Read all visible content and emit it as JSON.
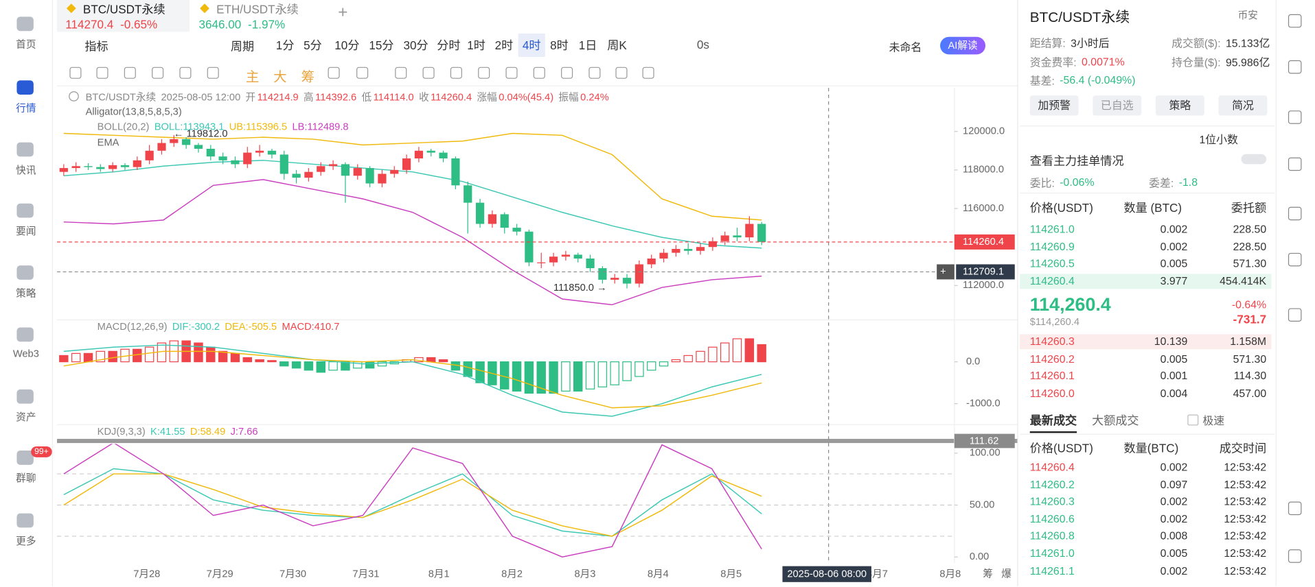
{
  "sidebar": {
    "items": [
      "首页",
      "行情",
      "快讯",
      "要闻",
      "策略",
      "Web3",
      "资产",
      "群聊",
      "更多"
    ],
    "active": 1,
    "badge": "99+"
  },
  "tabs": [
    {
      "symbol": "BTC/USDT永续",
      "price": "114270.4",
      "change": "-0.65%"
    },
    {
      "symbol": "ETH/USDT永续",
      "price": "3646.00",
      "change": "-1.97%"
    }
  ],
  "toolbar": {
    "indicator": "指标",
    "period": "周期",
    "intervals": [
      "1分",
      "5分",
      "10分",
      "15分",
      "30分",
      "分时",
      "1时",
      "2时",
      "4时",
      "8时",
      "1日",
      "周K"
    ],
    "active_interval": 8,
    "timer": "0s",
    "layout": "未命名",
    "ai": "AI解读"
  },
  "drawing_tools": [
    "主",
    "大",
    "筹"
  ],
  "chart": {
    "type": "candlestick",
    "legend": {
      "symbol": "BTC/USDT永续",
      "time": "2025-08-05 12:00",
      "fields": [
        {
          "label": "开",
          "value": "114214.9"
        },
        {
          "label": "高",
          "value": "114392.6"
        },
        {
          "label": "低",
          "value": "114114.0"
        },
        {
          "label": "收",
          "value": "114260.4"
        },
        {
          "label": "涨幅",
          "value": "0.04%(45.4)"
        },
        {
          "label": "振幅",
          "value": "0.24%"
        }
      ]
    },
    "indicators": {
      "alligator": "Alligator(13,8,5,8,5,3)",
      "boll": "BOLL(20,2)",
      "boll_mid": "BOLL:113943.1",
      "boll_ub": "UB:115396.5",
      "boll_lb": "LB:112489.8",
      "ema": "EMA"
    },
    "open": [
      117900,
      118100,
      118200,
      118150,
      118050,
      118250,
      118150,
      118500,
      119000,
      119400,
      119600,
      119300,
      119100,
      118700,
      118500,
      118300,
      118900,
      119000,
      118800,
      117800,
      117600,
      117900,
      118200,
      118300,
      117700,
      118100,
      117300,
      117800,
      118000,
      118600,
      119000,
      118900,
      118600,
      117200,
      116300,
      115200,
      115700,
      115000,
      114800,
      113200,
      113200,
      113500,
      113600,
      113400,
      112900,
      112300,
      112400,
      112100,
      113100,
      113400,
      113700,
      113900,
      113800,
      114000,
      114300,
      114600,
      114500,
      115200
    ],
    "high": [
      118300,
      118400,
      118350,
      118300,
      118400,
      118350,
      118700,
      119300,
      119600,
      119812,
      119700,
      119400,
      119300,
      118900,
      118700,
      119200,
      119300,
      119100,
      119000,
      118000,
      118100,
      118400,
      118500,
      118400,
      118300,
      118200,
      118000,
      118200,
      118800,
      119200,
      119100,
      119000,
      118700,
      117400,
      116500,
      115900,
      115800,
      115200,
      114900,
      113700,
      113700,
      113800,
      113700,
      113600,
      113000,
      112600,
      112600,
      113300,
      113600,
      113900,
      114100,
      114200,
      114200,
      114500,
      114800,
      115000,
      115600,
      115300
    ],
    "low": [
      117700,
      117900,
      118000,
      117900,
      117900,
      118000,
      118000,
      118300,
      118800,
      119200,
      119100,
      118900,
      118500,
      118300,
      118100,
      118100,
      118700,
      118600,
      117500,
      117300,
      117400,
      117700,
      118000,
      116300,
      117500,
      117100,
      117100,
      117600,
      117800,
      118400,
      118700,
      118400,
      117000,
      114700,
      115000,
      115000,
      114700,
      114600,
      113000,
      112900,
      113000,
      113300,
      113200,
      112700,
      112100,
      112100,
      111850,
      111900,
      112900,
      113200,
      113500,
      113600,
      113600,
      113800,
      114100,
      114300,
      114300,
      114100
    ],
    "close": [
      118100,
      118200,
      118150,
      118050,
      118250,
      118150,
      118500,
      119000,
      119400,
      119600,
      119300,
      119100,
      118700,
      118500,
      118300,
      118900,
      119000,
      118800,
      117800,
      117600,
      117900,
      118200,
      118300,
      117700,
      118100,
      117300,
      117800,
      118000,
      118600,
      119000,
      118900,
      118600,
      117200,
      116300,
      115200,
      115700,
      115000,
      114800,
      113200,
      113200,
      113500,
      113600,
      113400,
      112900,
      112300,
      112400,
      112100,
      113100,
      113400,
      113700,
      113900,
      113800,
      114000,
      114300,
      114600,
      114500,
      115200,
      114260.4
    ],
    "up_color": "#ef454a",
    "down_color": "#2ebd85",
    "ylim": [
      110300,
      122260
    ],
    "yticks": [
      {
        "value": 120000,
        "label": "120000.0"
      },
      {
        "value": 118000,
        "label": "118000.0"
      },
      {
        "value": 116000,
        "label": "116000.0"
      },
      {
        "value": 112000,
        "label": "112000.0"
      }
    ],
    "overlays": [
      {
        "name": "UB",
        "color": "#f0b90b",
        "values": [
          119900,
          119800,
          119700,
          119600,
          119700,
          119600,
          119300,
          119400,
          119500,
          119900,
          119800,
          118800,
          116500,
          115600,
          115400
        ]
      },
      {
        "name": "BOLL",
        "color": "#3cc8b4",
        "values": [
          117700,
          117900,
          118200,
          118400,
          118500,
          118300,
          118100,
          117900,
          117400,
          116600,
          115800,
          115100,
          114500,
          114100,
          113943
        ]
      },
      {
        "name": "LB",
        "color": "#c93fbf",
        "values": [
          115300,
          115200,
          115400,
          117200,
          117500,
          117000,
          116500,
          115800,
          114500,
          112800,
          111300,
          111000,
          111900,
          112300,
          112489
        ]
      }
    ],
    "last_price": 114260.4,
    "crosshair_price": 112709.1,
    "high_annotation": "← 119812.0",
    "low_annotation": "111850.0 →",
    "x_labels": [
      "7月28",
      "7月29",
      "7月30",
      "7月31",
      "8月1",
      "8月2",
      "8月3",
      "8月4",
      "8月5",
      null,
      "8月7",
      "8月8"
    ],
    "crosshair_time": "2025-08-06 08:00",
    "axis_buttons": [
      "筹",
      "爆"
    ]
  },
  "macd": {
    "title": "MACD(12,26,9)",
    "dif_label": "DIF:-300.2",
    "dea_label": "DEA:-505.5",
    "macd_label": "MACD:410.7",
    "histogram": [
      150,
      200,
      200,
      250,
      250,
      300,
      300,
      350,
      450,
      500,
      500,
      450,
      350,
      250,
      200,
      100,
      50,
      30,
      -100,
      -150,
      -200,
      -250,
      -200,
      -200,
      -150,
      -150,
      -100,
      -50,
      50,
      100,
      100,
      50,
      -200,
      -350,
      -500,
      -550,
      -650,
      -700,
      -750,
      -750,
      -750,
      -700,
      -700,
      -650,
      -600,
      -550,
      -450,
      -350,
      -200,
      -100,
      50,
      150,
      250,
      350,
      450,
      550,
      550,
      410.7
    ],
    "series": [
      {
        "name": "DIF",
        "color": "#3cc8b4",
        "values": [
          250,
          350,
          400,
          350,
          200,
          50,
          -50,
          0,
          -300,
          -800,
          -1200,
          -1300,
          -1000,
          -600,
          -300.2
        ]
      },
      {
        "name": "DEA",
        "color": "#f0b90b",
        "values": [
          -100,
          100,
          250,
          250,
          150,
          50,
          0,
          50,
          -100,
          -400,
          -800,
          -1100,
          -1050,
          -800,
          -505.5
        ]
      }
    ],
    "ylim": [
      -1460,
      980
    ],
    "yticks": [
      {
        "value": 0,
        "label": "0.0"
      },
      {
        "value": -1000,
        "label": "-1000.0"
      }
    ]
  },
  "kdj": {
    "title": "KDJ(9,3,3)",
    "k_label": "K:41.55",
    "d_label": "D:58.49",
    "j_label": "J:7.66",
    "series": [
      {
        "name": "K",
        "color": "#3cc8b4",
        "values": [
          60,
          85,
          80,
          55,
          45,
          40,
          38,
          60,
          80,
          40,
          25,
          20,
          55,
          80,
          41.55
        ]
      },
      {
        "name": "D",
        "color": "#f0b90b",
        "values": [
          50,
          80,
          80,
          65,
          48,
          42,
          38,
          55,
          75,
          45,
          30,
          20,
          45,
          78,
          58.49
        ]
      },
      {
        "name": "J",
        "color": "#c93fbf",
        "values": [
          80,
          110,
          80,
          40,
          50,
          30,
          40,
          105,
          90,
          20,
          0,
          10,
          108,
          85,
          7.66
        ]
      }
    ],
    "ylim": [
      -5.6,
      108.9
    ],
    "yticks": [
      {
        "value": 100,
        "label": "100.00"
      },
      {
        "value": 50,
        "label": "50.00"
      },
      {
        "value": 0,
        "label": "0.00"
      }
    ],
    "levels": [
      80,
      50,
      20
    ],
    "pane_label": "111.62"
  },
  "panel": {
    "title": "BTC/USDT永续",
    "exchange": "币安",
    "stats": [
      {
        "label": "距结算:",
        "value": "3小时后"
      },
      {
        "label": "成交额($):",
        "value": "15.133亿"
      },
      {
        "label": "资金费率:",
        "value": "0.0071%"
      },
      {
        "label": "持仓量($):",
        "value": "95.986亿"
      },
      {
        "label": "基差:",
        "value": "-56.4 (-0.049%)"
      }
    ],
    "buttons": [
      "加预警",
      "已自选",
      "策略",
      "简况"
    ],
    "precision": "1位小数",
    "depth_link": "查看主力挂单情况",
    "ratio_label": "委比:",
    "ratio": "-0.06%",
    "diff_label": "委差:",
    "diff": "-1.8",
    "book_headers": [
      "价格(USDT)",
      "数量 (BTC)",
      "委托额"
    ],
    "asks": [
      [
        "114261.0",
        "0.002",
        "228.50"
      ],
      [
        "114260.9",
        "0.002",
        "228.50"
      ],
      [
        "114260.5",
        "0.005",
        "571.30"
      ],
      [
        "114260.4",
        "3.977",
        "454.414K"
      ]
    ],
    "mid_price": "114,260.4",
    "mid_usd": "$114,260.4",
    "mid_change": "-0.64%",
    "mid_delta": "-731.7",
    "bids": [
      [
        "114260.3",
        "10.139",
        "1.158M"
      ],
      [
        "114260.2",
        "0.005",
        "571.30"
      ],
      [
        "114260.1",
        "0.001",
        "114.30"
      ],
      [
        "114260.0",
        "0.004",
        "457.00"
      ]
    ],
    "trade_tabs": [
      "最新成交",
      "大额成交"
    ],
    "fast": "极速",
    "trade_headers": [
      "价格(USDT)",
      "数量(BTC)",
      "成交时间"
    ],
    "trades": [
      [
        "114260.4",
        "0.002",
        "12:53:42"
      ],
      [
        "114260.2",
        "0.097",
        "12:53:42"
      ],
      [
        "114260.3",
        "0.002",
        "12:53:42"
      ],
      [
        "114260.6",
        "0.002",
        "12:53:42"
      ],
      [
        "114260.8",
        "0.008",
        "12:53:42"
      ],
      [
        "114261.0",
        "0.005",
        "12:53:42"
      ],
      [
        "114261.1",
        "0.002",
        "12:53:42"
      ]
    ]
  }
}
